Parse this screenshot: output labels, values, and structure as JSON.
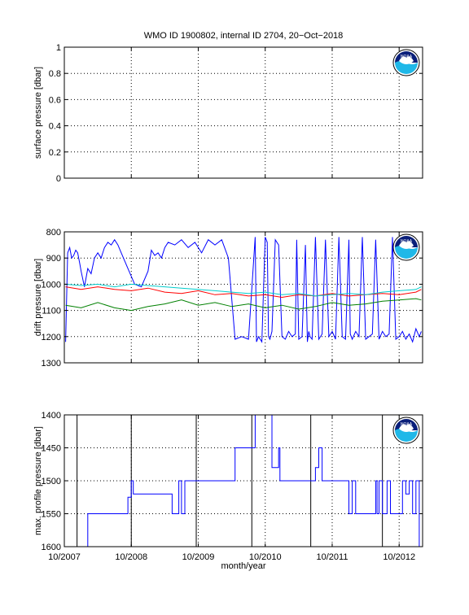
{
  "figure": {
    "title": "WMO ID 1900802, internal ID 2704, 20−Oct−2018",
    "xlabel": "month/year"
  },
  "logo": {
    "text": "NOAA",
    "icon": "noaa-logo-icon",
    "colors": {
      "navy": "#0a1f7a",
      "cyan": "#1fb8e8"
    }
  },
  "chart_data": [
    {
      "type": "line",
      "ylabel": "surface pressure [dbar]",
      "ylim": [
        0,
        1
      ],
      "yticks": [
        0,
        0.2,
        0.4,
        0.6,
        0.8,
        1
      ],
      "ytick_labels": [
        "0",
        "0.2",
        "0.4",
        "0.6",
        "0.8",
        "1"
      ],
      "xlim": [
        2007.75,
        2013.1
      ],
      "xticks": [
        2007.75,
        2008.75,
        2009.75,
        2010.75,
        2011.75,
        2012.75
      ],
      "xtick_labels": [
        "10/2007",
        "10/2008",
        "10/2009",
        "10/2010",
        "10/2011",
        "10/2012"
      ],
      "grid": true,
      "series": []
    },
    {
      "type": "line",
      "ylabel": "drift pressure [dbar]",
      "ylim": [
        800,
        1300
      ],
      "y_reversed": true,
      "yticks": [
        800,
        900,
        1000,
        1100,
        1200,
        1300
      ],
      "ytick_labels": [
        "800",
        "900",
        "1000",
        "1100",
        "1200",
        "1300"
      ],
      "xlim": [
        2007.75,
        2013.1
      ],
      "xticks": [
        2007.75,
        2008.75,
        2009.75,
        2010.75,
        2011.75,
        2012.75
      ],
      "xtick_labels": [
        "10/2007",
        "10/2008",
        "10/2009",
        "10/2010",
        "10/2011",
        "10/2012"
      ],
      "grid": true,
      "series": [
        {
          "color": "#0000ff",
          "x": [
            2007.77,
            2007.8,
            2007.83,
            2007.86,
            2007.89,
            2007.92,
            2007.95,
            2007.98,
            2008.0,
            2008.05,
            2008.1,
            2008.15,
            2008.2,
            2008.25,
            2008.3,
            2008.35,
            2008.4,
            2008.45,
            2008.5,
            2008.55,
            2008.6,
            2008.7,
            2008.8,
            2008.9,
            2009.0,
            2009.05,
            2009.1,
            2009.15,
            2009.2,
            2009.25,
            2009.3,
            2009.4,
            2009.5,
            2009.6,
            2009.7,
            2009.8,
            2009.9,
            2010.0,
            2010.1,
            2010.2,
            2010.3,
            2010.4,
            2010.5,
            2010.6,
            2010.62,
            2010.65,
            2010.7,
            2010.75,
            2010.78,
            2010.8,
            2010.82,
            2010.85,
            2010.9,
            2010.95,
            2011.0,
            2011.05,
            2011.1,
            2011.15,
            2011.2,
            2011.22,
            2011.25,
            2011.3,
            2011.35,
            2011.38,
            2011.4,
            2011.42,
            2011.45,
            2011.5,
            2011.55,
            2011.6,
            2011.65,
            2011.7,
            2011.75,
            2011.8,
            2011.85,
            2011.9,
            2011.95,
            2012.0,
            2012.02,
            2012.05,
            2012.1,
            2012.15,
            2012.2,
            2012.25,
            2012.3,
            2012.35,
            2012.4,
            2012.45,
            2012.5,
            2012.55,
            2012.6,
            2012.65,
            2012.7,
            2012.75,
            2012.8,
            2012.85,
            2012.9,
            2012.95,
            2013.0,
            2013.05,
            2013.08
          ],
          "y": [
            1220,
            880,
            860,
            900,
            890,
            870,
            880,
            920,
            950,
            1010,
            940,
            960,
            900,
            880,
            900,
            860,
            840,
            850,
            830,
            850,
            880,
            940,
            1000,
            1010,
            950,
            870,
            890,
            880,
            900,
            860,
            840,
            850,
            830,
            860,
            840,
            880,
            830,
            850,
            830,
            900,
            1210,
            1200,
            1210,
            820,
            1220,
            1200,
            1220,
            820,
            840,
            1200,
            1210,
            1180,
            830,
            850,
            1200,
            1210,
            1180,
            1200,
            1190,
            830,
            1210,
            1200,
            850,
            1220,
            1180,
            1200,
            1210,
            820,
            1210,
            1190,
            830,
            1200,
            1180,
            1210,
            820,
            1200,
            1210,
            830,
            1190,
            1210,
            1180,
            1200,
            820,
            1210,
            1200,
            1190,
            830,
            1210,
            1180,
            1200,
            1190,
            820,
            1210,
            1200,
            1180,
            1210,
            1190,
            1220,
            1170,
            1200,
            1180
          ]
        },
        {
          "color": "#ff0000",
          "x": [
            2007.77,
            2008.0,
            2008.25,
            2008.5,
            2008.75,
            2009.0,
            2009.25,
            2009.5,
            2009.75,
            2010.0,
            2010.25,
            2010.5,
            2010.75,
            2011.0,
            2011.25,
            2011.5,
            2011.75,
            2012.0,
            2012.25,
            2012.5,
            2012.75,
            2013.0,
            2013.08
          ],
          "y": [
            1010,
            1020,
            1010,
            1020,
            1025,
            1015,
            1030,
            1035,
            1025,
            1040,
            1035,
            1045,
            1040,
            1050,
            1040,
            1045,
            1035,
            1045,
            1040,
            1035,
            1040,
            1030,
            1020
          ]
        },
        {
          "color": "#00cccc",
          "x": [
            2007.77,
            2008.0,
            2008.25,
            2008.5,
            2008.75,
            2009.0,
            2009.25,
            2009.5,
            2009.75,
            2010.0,
            2010.25,
            2010.5,
            2010.75,
            2011.0,
            2011.25,
            2011.5,
            2011.75,
            2012.0,
            2012.25,
            2012.5,
            2012.75,
            2013.0,
            2013.08
          ],
          "y": [
            1000,
            1005,
            1000,
            1010,
            1000,
            1005,
            1010,
            1015,
            1020,
            1025,
            1030,
            1035,
            1030,
            1040,
            1035,
            1045,
            1040,
            1035,
            1040,
            1030,
            1025,
            1020,
            1010
          ]
        },
        {
          "color": "#008000",
          "x": [
            2007.77,
            2008.0,
            2008.25,
            2008.5,
            2008.75,
            2009.0,
            2009.25,
            2009.5,
            2009.75,
            2010.0,
            2010.25,
            2010.5,
            2010.75,
            2011.0,
            2011.25,
            2011.5,
            2011.75,
            2012.0,
            2012.25,
            2012.5,
            2012.75,
            2013.0,
            2013.08
          ],
          "y": [
            1080,
            1090,
            1070,
            1090,
            1100,
            1085,
            1075,
            1060,
            1080,
            1070,
            1085,
            1075,
            1090,
            1080,
            1095,
            1085,
            1070,
            1080,
            1075,
            1065,
            1060,
            1055,
            1060
          ]
        }
      ]
    },
    {
      "type": "line",
      "ylabel": "max. profile pressure [dbar]",
      "ylim": [
        1400,
        1600
      ],
      "y_reversed": true,
      "yticks": [
        1400,
        1450,
        1500,
        1550,
        1600
      ],
      "ytick_labels": [
        "1400",
        "1450",
        "1500",
        "1550",
        "1600"
      ],
      "xlim": [
        2007.75,
        2013.1
      ],
      "xticks": [
        2007.75,
        2008.75,
        2009.75,
        2010.75,
        2011.75,
        2012.75
      ],
      "xtick_labels": [
        "10/2007",
        "10/2008",
        "10/2009",
        "10/2010",
        "10/2011",
        "10/2012"
      ],
      "grid": true,
      "vlines": [
        2007.94,
        2008.75,
        2009.72,
        2010.55,
        2011.43,
        2012.5
      ],
      "series": [
        {
          "color": "#0000ff",
          "x": [
            2007.99,
            2008.1,
            2008.1,
            2008.7,
            2008.7,
            2008.75,
            2008.75,
            2008.78,
            2008.78,
            2009.36,
            2009.36,
            2009.46,
            2009.46,
            2009.5,
            2009.5,
            2009.55,
            2009.55,
            2009.59,
            2009.59,
            2010.3,
            2010.3,
            2010.6,
            2010.6,
            2010.85,
            2010.85,
            2010.95,
            2010.95,
            2010.97,
            2010.97,
            2011.0,
            2011.0,
            2011.5,
            2011.5,
            2011.55,
            2011.55,
            2011.6,
            2011.6,
            2012.0,
            2012.0,
            2012.05,
            2012.05,
            2012.1,
            2012.1,
            2012.4,
            2012.4,
            2012.42,
            2012.42,
            2012.45,
            2012.45,
            2012.5,
            2012.5,
            2012.57,
            2012.57,
            2012.62,
            2012.62,
            2012.8,
            2012.8,
            2012.85,
            2012.85,
            2012.9,
            2012.9,
            2012.95,
            2012.95,
            2013.0,
            2013.0,
            2013.05,
            2013.05,
            2013.08
          ],
          "y": [
            1600,
            1600,
            1550,
            1550,
            1525,
            1525,
            1500,
            1500,
            1520,
            1520,
            1550,
            1550,
            1500,
            1500,
            1550,
            1550,
            1500,
            1500,
            1500,
            1500,
            1450,
            1450,
            1400,
            1400,
            1480,
            1480,
            1450,
            1450,
            1500,
            1500,
            1500,
            1500,
            1480,
            1480,
            1450,
            1450,
            1500,
            1500,
            1550,
            1550,
            1500,
            1500,
            1550,
            1550,
            1500,
            1500,
            1550,
            1550,
            1500,
            1500,
            1550,
            1550,
            1500,
            1500,
            1550,
            1550,
            1500,
            1500,
            1520,
            1520,
            1500,
            1500,
            1550,
            1550,
            1500,
            1500,
            1600,
            1600
          ]
        }
      ]
    }
  ]
}
